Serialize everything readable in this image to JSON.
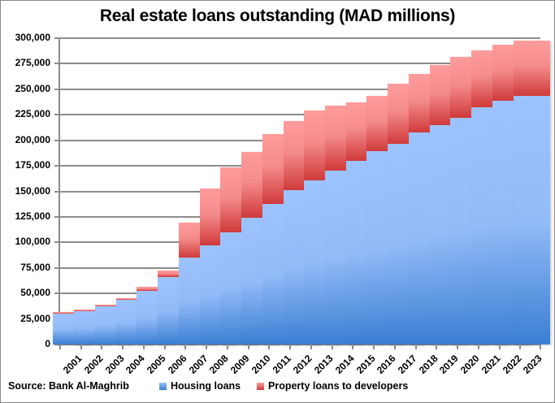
{
  "title": "Real estate loans outstanding (MAD millions)",
  "source": "Source: Bank Al-Maghrib",
  "legend": [
    {
      "label": "Housing loans",
      "color": "#6fa3ec"
    },
    {
      "label": "Property loans to developers",
      "color": "#e86a6a"
    }
  ],
  "y_ticks": [
    "300,000",
    "275,000",
    "250,000",
    "225,000",
    "200,000",
    "175,000",
    "150,000",
    "125,000",
    "100,000",
    "75,000",
    "50,000",
    "25,000",
    "0"
  ],
  "chart_data": {
    "type": "bar",
    "stacked": true,
    "title": "Real estate loans outstanding (MAD millions)",
    "xlabel": "",
    "ylabel": "",
    "ylim": [
      0,
      300000
    ],
    "grid": true,
    "legend_position": "bottom",
    "categories": [
      "2001",
      "2002",
      "2003",
      "2004",
      "2005",
      "2006",
      "2007",
      "2008",
      "2009",
      "2010",
      "2011",
      "2012",
      "2013",
      "2014",
      "2015",
      "2016",
      "2017",
      "2018",
      "2019",
      "2020",
      "2021",
      "2022",
      "2023"
    ],
    "series": [
      {
        "name": "Housing loans",
        "values": [
          30200,
          32600,
          37400,
          43800,
          52500,
          66000,
          85100,
          97100,
          109800,
          124100,
          137700,
          151200,
          160800,
          170300,
          179900,
          189400,
          196600,
          207700,
          214900,
          222000,
          232400,
          239100,
          243500
        ]
      },
      {
        "name": "Property loans to developers",
        "values": [
          1600,
          1600,
          1600,
          1600,
          4000,
          6400,
          34300,
          55700,
          63700,
          64500,
          68400,
          67600,
          68400,
          63700,
          57200,
          54100,
          58800,
          57300,
          58900,
          59700,
          55700,
          54500,
          54100
        ]
      }
    ],
    "totals": [
      31800,
      34200,
      39000,
      45400,
      56500,
      72400,
      119400,
      152800,
      173500,
      188600,
      206100,
      218800,
      229200,
      234000,
      237100,
      243500,
      255400,
      265000,
      273800,
      281700,
      288100,
      293600,
      297600
    ],
    "annotations": [
      "Source: Bank Al-Maghrib"
    ]
  }
}
